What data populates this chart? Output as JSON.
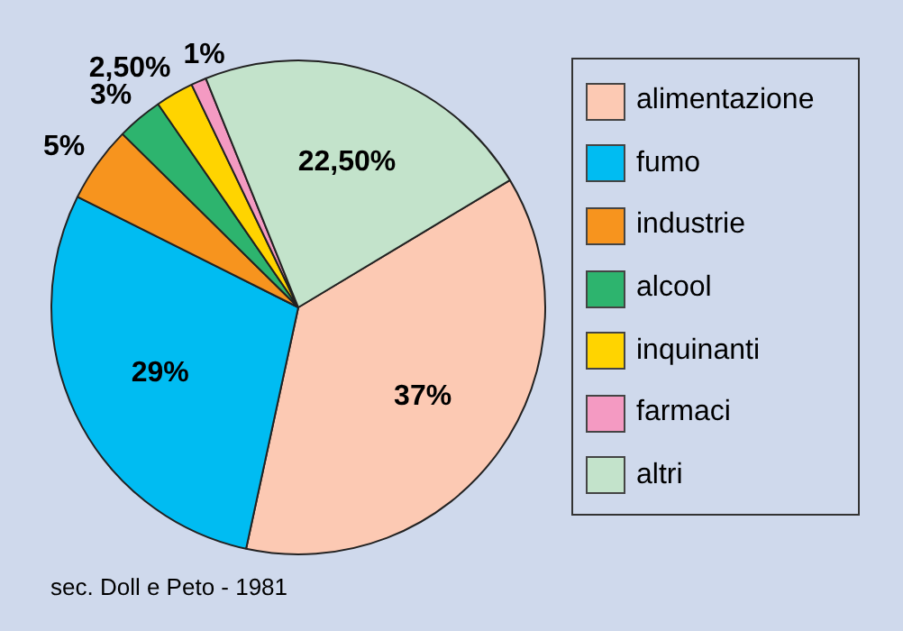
{
  "chart_data": {
    "type": "pie",
    "categories": [
      "alimentazione",
      "fumo",
      "industrie",
      "alcool",
      "inquinanti",
      "farmaci",
      "altri"
    ],
    "values": [
      37,
      29,
      5,
      3,
      2.5,
      1,
      22.5
    ],
    "value_labels": [
      "37%",
      "29%",
      "5%",
      "3%",
      "2,50%",
      "1%",
      "22,50%"
    ],
    "colors": [
      "#fcc9b3",
      "#00bcf2",
      "#f7941e",
      "#2db46e",
      "#ffd400",
      "#f49ac2",
      "#c3e3cb"
    ],
    "legend": "right",
    "annotations": [
      "sec. Doll e Peto - 1981"
    ]
  }
}
